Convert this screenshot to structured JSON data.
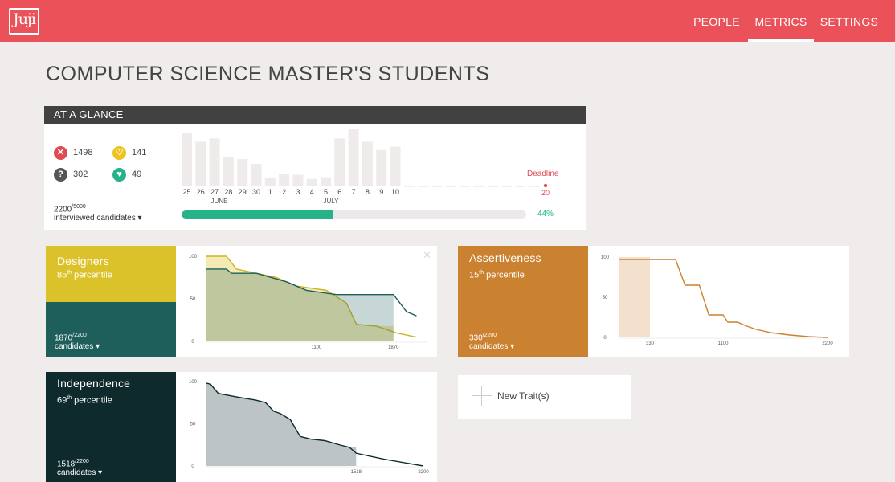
{
  "app": {
    "logo_text": "Juji"
  },
  "nav": {
    "people": "PEOPLE",
    "metrics": "METRICS",
    "settings": "SETTINGS"
  },
  "page_title": "COMPUTER SCIENCE MASTER'S STUDENTS",
  "glance": {
    "title": "AT A GLANCE",
    "stats": {
      "rejected": "1498",
      "maybe": "141",
      "unknown": "302",
      "liked": "49"
    },
    "interviewed_count": "2200",
    "interviewed_total": "/5000",
    "interviewed_label": "interviewed candidates ▾",
    "deadline_label": "Deadline",
    "deadline_day": "20",
    "progress_percent": 44,
    "progress_label": "44%",
    "days": [
      "25",
      "26",
      "27",
      "28",
      "29",
      "30",
      "1",
      "2",
      "3",
      "4",
      "5",
      "6",
      "7",
      "8",
      "9",
      "10"
    ],
    "day_values": [
      65,
      54,
      58,
      36,
      33,
      27,
      10,
      15,
      14,
      9,
      11,
      58,
      70,
      54,
      44,
      48
    ],
    "month_labels": [
      "JUNE",
      "JULY"
    ]
  },
  "traits": [
    {
      "name": "Designers",
      "percentile": "85",
      "percentile_suffix": "th",
      "percentile_word": "percentile",
      "count": "1870",
      "count_total": "/2200",
      "count_label": "candidates ▾",
      "colors": {
        "top": "#dcc22a",
        "bottom": "#1e5f5b",
        "line1": "#cbb421",
        "line2": "#1e5f5b"
      },
      "chart_data": {
        "type": "area",
        "xlim": [
          0,
          2200
        ],
        "ylim": [
          0,
          100
        ],
        "yticks": [
          "100",
          "50",
          "0"
        ],
        "xticks": [
          "1100",
          "1870"
        ],
        "series": [
          {
            "points": [
              [
                0,
                100
              ],
              [
                200,
                100
              ],
              [
                300,
                85
              ],
              [
                500,
                80
              ],
              [
                700,
                75
              ],
              [
                900,
                65
              ],
              [
                1200,
                60
              ],
              [
                1400,
                45
              ],
              [
                1500,
                20
              ],
              [
                1700,
                18
              ],
              [
                1900,
                10
              ],
              [
                2100,
                5
              ]
            ]
          },
          {
            "points": [
              [
                0,
                85
              ],
              [
                200,
                85
              ],
              [
                250,
                80
              ],
              [
                500,
                80
              ],
              [
                800,
                70
              ],
              [
                1000,
                60
              ],
              [
                1300,
                55
              ],
              [
                1870,
                55
              ],
              [
                2000,
                35
              ],
              [
                2100,
                30
              ]
            ]
          }
        ]
      }
    },
    {
      "name": "Assertiveness",
      "percentile": "15",
      "percentile_suffix": "th",
      "percentile_word": "percentile",
      "count": "330",
      "count_total": "/2200",
      "count_label": "candidates ▾",
      "colors": {
        "top": "#cb8230",
        "bottom": "#cb8230",
        "line1": "#cb8230"
      },
      "chart_data": {
        "type": "line",
        "xlim": [
          0,
          2200
        ],
        "ylim": [
          0,
          100
        ],
        "yticks": [
          "100",
          "50",
          "0"
        ],
        "xticks": [
          "330",
          "1100",
          "2200"
        ],
        "highlight_range": [
          0,
          330
        ],
        "series": [
          {
            "points": [
              [
                0,
                97
              ],
              [
                500,
                97
              ],
              [
                600,
                97
              ],
              [
                700,
                65
              ],
              [
                850,
                65
              ],
              [
                950,
                28
              ],
              [
                1050,
                28
              ],
              [
                1100,
                28
              ],
              [
                1150,
                19
              ],
              [
                1250,
                19
              ],
              [
                1350,
                14
              ],
              [
                1450,
                10
              ],
              [
                1600,
                6
              ],
              [
                1800,
                3
              ],
              [
                2000,
                1
              ],
              [
                2200,
                0
              ]
            ]
          }
        ]
      }
    },
    {
      "name": "Independence",
      "percentile": "69",
      "percentile_suffix": "th",
      "percentile_word": "percentile",
      "count": "1518",
      "count_total": "/2200",
      "count_label": "candidates ▾",
      "colors": {
        "top": "#0e2a2d",
        "bottom": "#0e2a2d",
        "line1": "#0e2a2d"
      },
      "chart_data": {
        "type": "area",
        "xlim": [
          0,
          2200
        ],
        "ylim": [
          0,
          100
        ],
        "yticks": [
          "100",
          "50",
          "0"
        ],
        "xticks": [
          "1518",
          "2200"
        ],
        "highlight_range": [
          0,
          1518
        ],
        "series": [
          {
            "points": [
              [
                0,
                98
              ],
              [
                40,
                97
              ],
              [
                120,
                86
              ],
              [
                300,
                82
              ],
              [
                500,
                78
              ],
              [
                600,
                75
              ],
              [
                680,
                65
              ],
              [
                750,
                62
              ],
              [
                850,
                55
              ],
              [
                950,
                35
              ],
              [
                1050,
                32
              ],
              [
                1200,
                30
              ],
              [
                1350,
                25
              ],
              [
                1450,
                22
              ],
              [
                1520,
                15
              ],
              [
                1800,
                8
              ],
              [
                2100,
                2
              ],
              [
                2200,
                0
              ]
            ]
          }
        ]
      }
    }
  ],
  "new_trait_label": "New Trait(s)"
}
